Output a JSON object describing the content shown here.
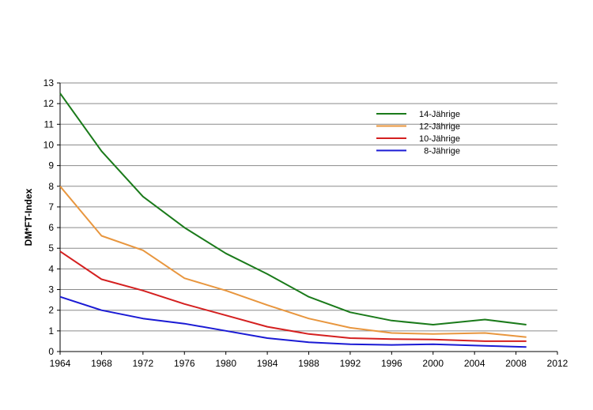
{
  "chart_data": {
    "type": "line",
    "title": "",
    "xlabel": "",
    "ylabel": "DM*FT-Index",
    "xlim": [
      1964,
      2012
    ],
    "ylim": [
      0,
      13
    ],
    "xticks": [
      1964,
      1968,
      1972,
      1976,
      1980,
      1984,
      1988,
      1992,
      1996,
      2000,
      2004,
      2008,
      2012
    ],
    "yticks": [
      0,
      1,
      2,
      3,
      4,
      5,
      6,
      7,
      8,
      9,
      10,
      11,
      12,
      13
    ],
    "grid": "horizontal",
    "legend_position": "top-right",
    "series": [
      {
        "name": "14-Jährige",
        "color": "#1a7a1a",
        "x": [
          1964,
          1968,
          1972,
          1976,
          1980,
          1984,
          1988,
          1992,
          1996,
          2000,
          2005,
          2009
        ],
        "y": [
          12.5,
          9.7,
          7.5,
          6.0,
          4.75,
          3.75,
          2.65,
          1.9,
          1.5,
          1.3,
          1.55,
          1.3
        ]
      },
      {
        "name": "12-Jährige",
        "color": "#e8963e",
        "x": [
          1964,
          1968,
          1972,
          1976,
          1980,
          1984,
          1988,
          1992,
          1996,
          2000,
          2005,
          2009
        ],
        "y": [
          8.0,
          5.6,
          4.9,
          3.55,
          2.95,
          2.25,
          1.6,
          1.15,
          0.9,
          0.85,
          0.9,
          0.7
        ]
      },
      {
        "name": "10-Jährige",
        "color": "#d42020",
        "x": [
          1964,
          1968,
          1972,
          1976,
          1980,
          1984,
          1988,
          1992,
          1996,
          2000,
          2005,
          2009
        ],
        "y": [
          4.85,
          3.5,
          2.95,
          2.3,
          1.75,
          1.2,
          0.85,
          0.65,
          0.6,
          0.58,
          0.5,
          0.5
        ]
      },
      {
        "name": "8-Jährige",
        "color": "#1a1ad4",
        "x": [
          1964,
          1968,
          1972,
          1976,
          1980,
          1984,
          1988,
          1992,
          1996,
          2000,
          2005,
          2009
        ],
        "y": [
          2.65,
          2.0,
          1.6,
          1.35,
          1.0,
          0.65,
          0.45,
          0.35,
          0.32,
          0.35,
          0.28,
          0.22
        ]
      }
    ]
  }
}
